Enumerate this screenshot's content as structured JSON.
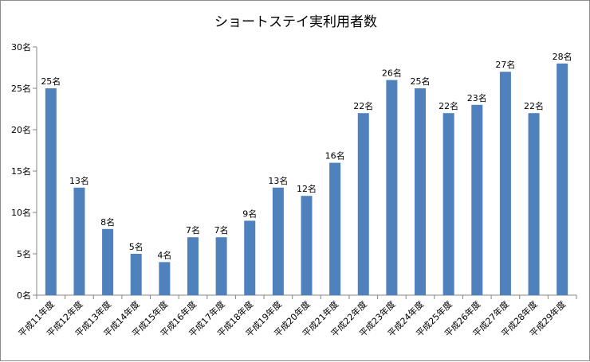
{
  "chart_data": {
    "type": "bar",
    "title": "ショートステイ実利用者数",
    "xlabel": "",
    "ylabel": "",
    "categories": [
      "平成11年度",
      "平成12年度",
      "平成13年度",
      "平成14年度",
      "平成15年度",
      "平成16年度",
      "平成17年度",
      "平成18年度",
      "平成19年度",
      "平成20年度",
      "平成21年度",
      "平成22年度",
      "平成23年度",
      "平成24年度",
      "平成25年度",
      "平成26年度",
      "平成27年度",
      "平成28年度",
      "平成29年度"
    ],
    "values": [
      25,
      13,
      8,
      5,
      4,
      7,
      7,
      9,
      13,
      12,
      16,
      22,
      26,
      25,
      22,
      23,
      27,
      22,
      28
    ],
    "data_labels": [
      "25名",
      "13名",
      "8名",
      "5名",
      "4名",
      "7名",
      "7名",
      "9名",
      "13名",
      "12名",
      "16名",
      "22名",
      "26名",
      "25名",
      "22名",
      "23名",
      "27名",
      "22名",
      "28名"
    ],
    "ylim": [
      0,
      30
    ],
    "yticks": [
      0,
      5,
      10,
      15,
      20,
      25,
      30
    ],
    "ytick_labels": [
      "0名",
      "5名",
      "10名",
      "15名",
      "20名",
      "25名",
      "30名"
    ],
    "grid": false,
    "legend": "none",
    "bar_color": "#4f81bd",
    "axis_color": "#868686"
  }
}
